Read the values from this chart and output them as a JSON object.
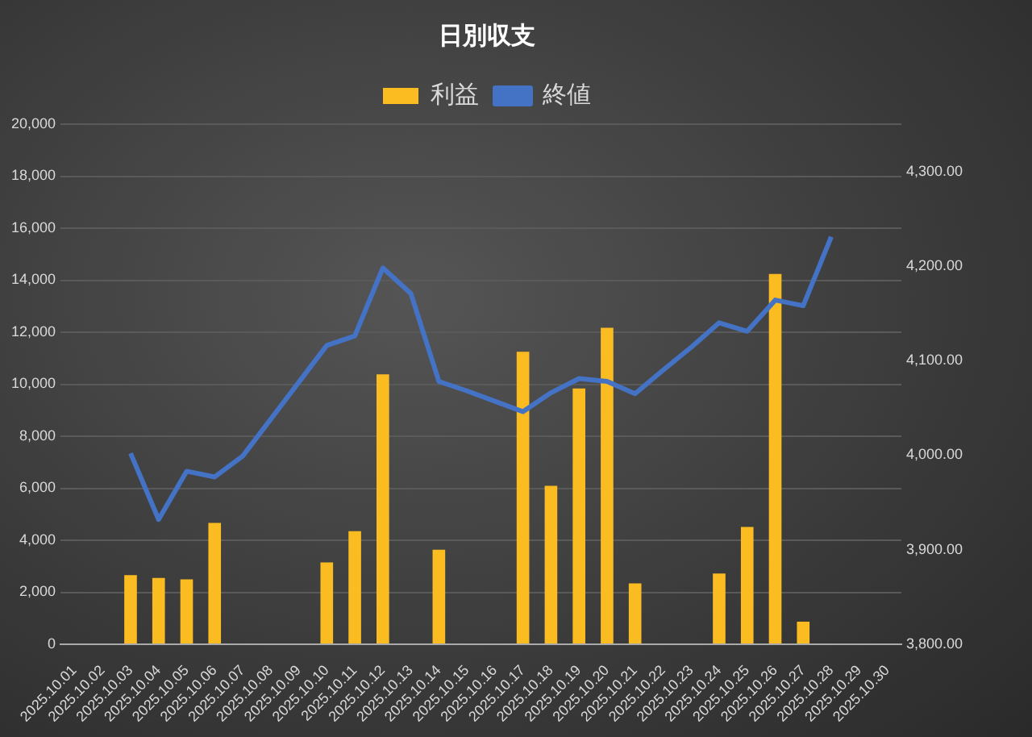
{
  "chart_data": {
    "type": "bar",
    "title": "日別収支",
    "categories": [
      "2025.10.01",
      "2025.10.02",
      "2025.10.03",
      "2025.10.04",
      "2025.10.05",
      "2025.10.06",
      "2025.10.07",
      "2025.10.08",
      "2025.10.09",
      "2025.10.10",
      "2025.10.11",
      "2025.10.12",
      "2025.10.13",
      "2025.10.14",
      "2025.10.15",
      "2025.10.16",
      "2025.10.17",
      "2025.10.18",
      "2025.10.19",
      "2025.10.20",
      "2025.10.21",
      "2025.10.22",
      "2025.10.23",
      "2025.10.24",
      "2025.10.25",
      "2025.10.26",
      "2025.10.27",
      "2025.10.28",
      "2025.10.29",
      "2025.10.30"
    ],
    "series": [
      {
        "name": "利益",
        "color": "#fbbc22",
        "values": [
          null,
          null,
          2660,
          2550,
          2500,
          4670,
          null,
          null,
          null,
          3150,
          4350,
          10380,
          null,
          3640,
          null,
          null,
          11250,
          6090,
          9840,
          12170,
          2340,
          null,
          null,
          2720,
          4510,
          14240,
          870,
          null,
          null,
          null
        ]
      },
      {
        "name": "終値",
        "type": "line",
        "axis": "y2",
        "color": "#4472c4",
        "values": [
          null,
          null,
          4002,
          3932,
          3983,
          3977,
          3999,
          4038,
          4077,
          4116,
          4126,
          4198,
          4171,
          4078,
          4068,
          4057,
          4046,
          4066,
          4081,
          4078,
          4065,
          4090,
          4114,
          4140,
          4131,
          4164,
          4158,
          4231,
          null,
          null
        ]
      }
    ],
    "ylim": [
      0,
      20000
    ],
    "yticks": [
      0,
      {
        "value": 2000,
        "label": "2,000"
      },
      {
        "value": 4000,
        "label": "4,000"
      },
      {
        "value": 6000,
        "label": "6,000"
      },
      {
        "value": 8000,
        "label": "8,000"
      },
      {
        "value": 10000,
        "label": "10,000"
      },
      {
        "value": 12000,
        "label": "12,000"
      },
      {
        "value": 14000,
        "label": "14,000"
      },
      {
        "value": 16000,
        "label": "16,000"
      },
      {
        "value": 18000,
        "label": "18,000"
      },
      {
        "value": 20000,
        "label": "20,000"
      }
    ],
    "y2lim": [
      3800,
      4350
    ],
    "y2ticks": [
      {
        "value": 3800,
        "label": "3,800.00"
      },
      {
        "value": 3900,
        "label": "3,900.00"
      },
      {
        "value": 4000,
        "label": "4,000.00"
      },
      {
        "value": 4100,
        "label": "4,100.00"
      },
      {
        "value": 4200,
        "label": "4,200.00"
      },
      {
        "value": 4300,
        "label": "4,300.00"
      }
    ],
    "grid": "y",
    "legend": "top",
    "marker": "none"
  }
}
